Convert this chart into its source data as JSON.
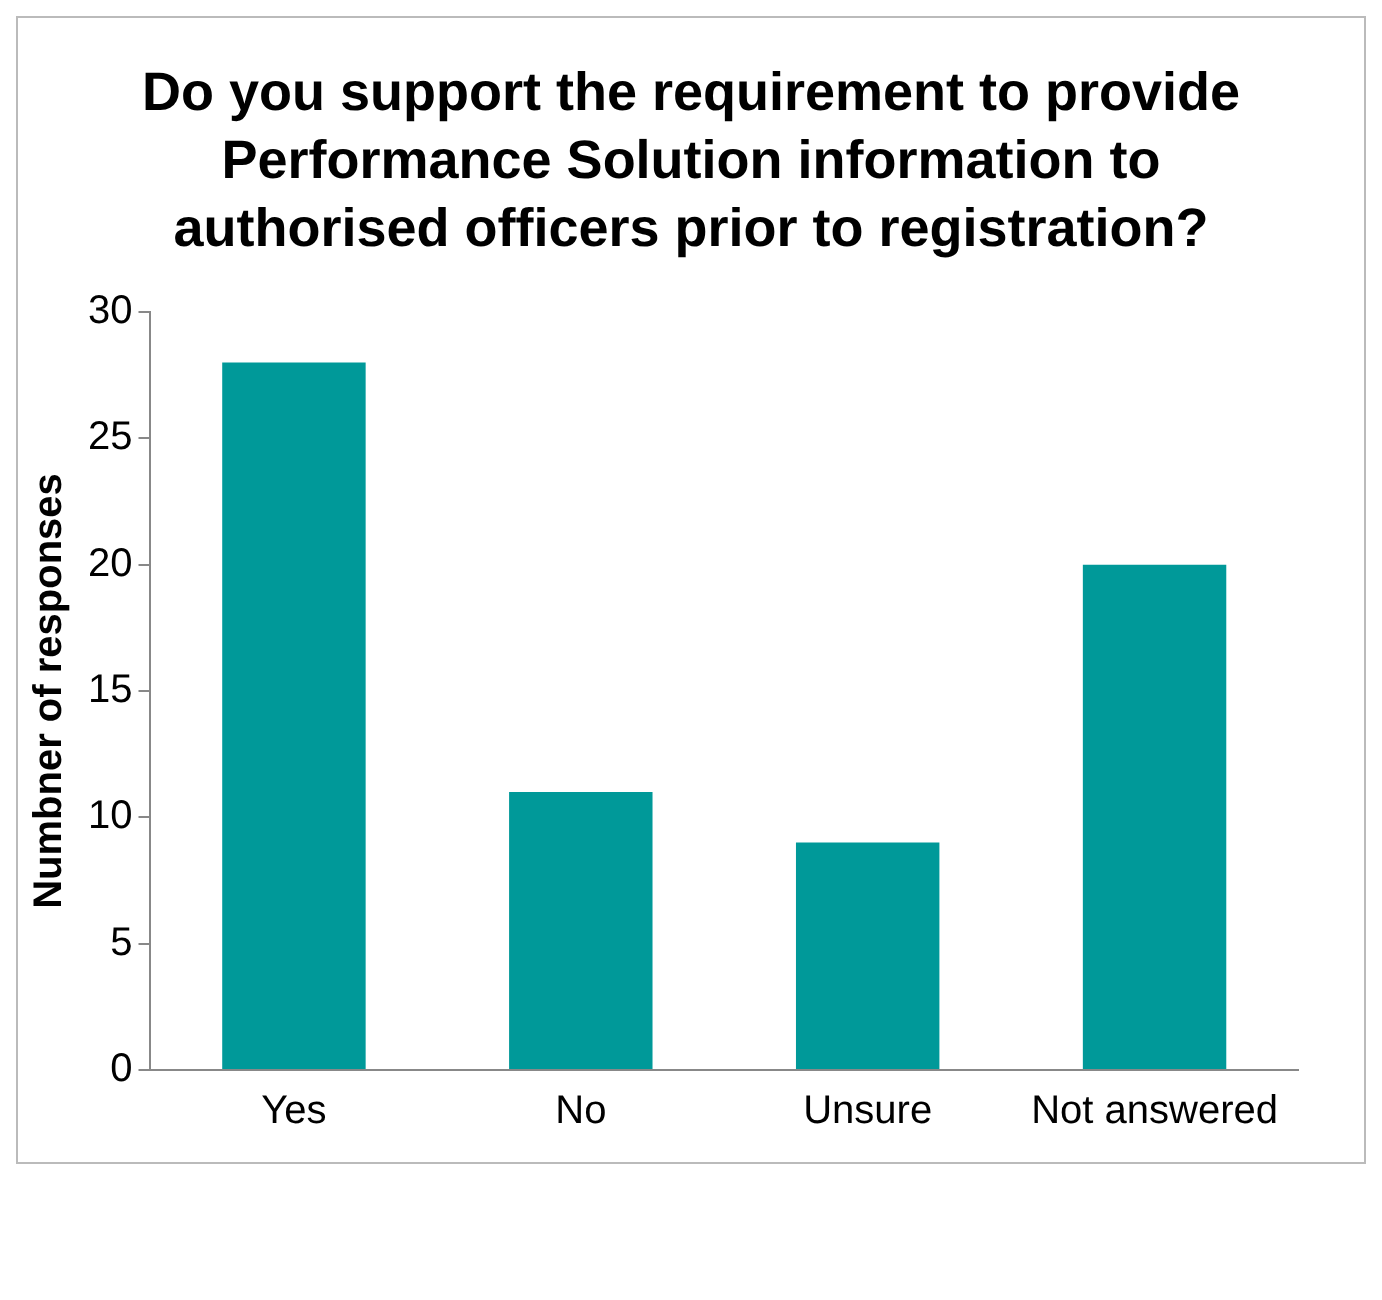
{
  "chart_data": {
    "type": "bar",
    "title": "Do you support the requirement to provide Performance Solution information to authorised officers prior to registration?",
    "ylabel": "Numbner of responses",
    "categories": [
      "Yes",
      "No",
      "Unsure",
      "Not answered"
    ],
    "values": [
      28,
      11,
      9,
      20
    ],
    "color": "#009999",
    "ylim": [
      0,
      30
    ],
    "yticks": [
      0,
      5,
      10,
      15,
      20,
      25,
      30
    ],
    "grid": false,
    "legend": false
  }
}
